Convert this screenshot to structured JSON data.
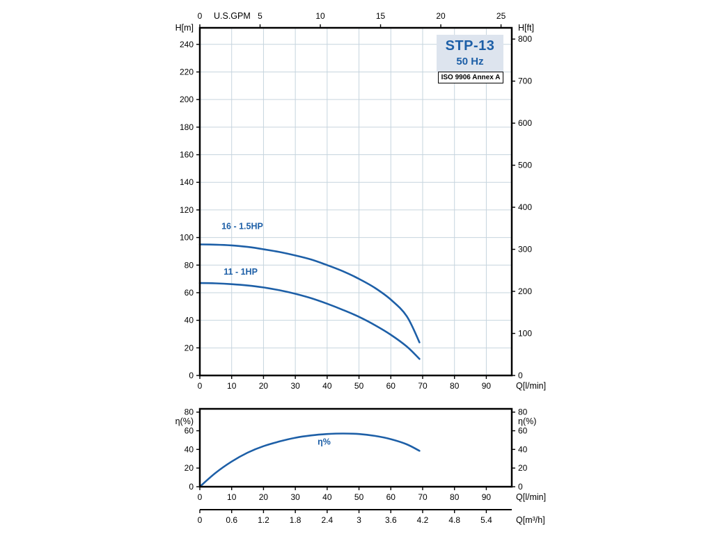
{
  "title_box": {
    "model": "STP-13",
    "frequency": "50 Hz",
    "standard": "ISO 9906 Annex A"
  },
  "colors": {
    "curve": "#1d5fa7",
    "grid": "#c6d4de",
    "axis": "#000000",
    "title_text": "#1d5fa7",
    "title_bg": "#dde4ee"
  },
  "chart_data": [
    {
      "id": "head_flow",
      "type": "line",
      "title": "STP-13 50 Hz head vs flow",
      "x_axis": {
        "label": "Q[l/min]",
        "min": 0,
        "max": 98,
        "ticks": [
          0,
          10,
          20,
          30,
          40,
          50,
          60,
          70,
          80,
          90
        ]
      },
      "x_top_axis": {
        "label": "U.S.GPM",
        "ticks": [
          0,
          5,
          10,
          15,
          20,
          25
        ],
        "lpm_per_gpm": 3.785
      },
      "y_axis": {
        "label": "H[m]",
        "min": 0,
        "max": 252,
        "ticks": [
          0,
          20,
          40,
          60,
          80,
          100,
          120,
          140,
          160,
          180,
          200,
          220,
          240
        ]
      },
      "y_right_axis": {
        "label": "H[ft]",
        "ticks": [
          0,
          100,
          200,
          300,
          400,
          500,
          600,
          700,
          800
        ],
        "ft_per_m": 3.2808
      },
      "grid": true,
      "legend_position": "none",
      "series": [
        {
          "name": "16 - 1.5HP",
          "label_pos": {
            "x": 6.8,
            "y": 106
          },
          "points": [
            [
              0,
              95
            ],
            [
              5,
              94.8
            ],
            [
              10,
              94.3
            ],
            [
              15,
              93.2
            ],
            [
              20,
              91.5
            ],
            [
              25,
              89.5
            ],
            [
              30,
              87
            ],
            [
              35,
              84
            ],
            [
              40,
              80
            ],
            [
              45,
              75.5
            ],
            [
              50,
              70
            ],
            [
              55,
              63.5
            ],
            [
              60,
              55
            ],
            [
              65,
              43
            ],
            [
              69,
              24
            ]
          ]
        },
        {
          "name": "11 - 1HP",
          "label_pos": {
            "x": 7.5,
            "y": 73
          },
          "points": [
            [
              0,
              67
            ],
            [
              5,
              66.8
            ],
            [
              10,
              66.2
            ],
            [
              15,
              65.2
            ],
            [
              20,
              63.8
            ],
            [
              25,
              61.8
            ],
            [
              30,
              59.2
            ],
            [
              35,
              56
            ],
            [
              40,
              52
            ],
            [
              45,
              47.5
            ],
            [
              50,
              42.5
            ],
            [
              55,
              36.5
            ],
            [
              60,
              29.5
            ],
            [
              65,
              21
            ],
            [
              69,
              12
            ]
          ]
        }
      ]
    },
    {
      "id": "efficiency",
      "type": "line",
      "title": "Efficiency vs flow",
      "x_axis": {
        "label": "Q[l/min]",
        "min": 0,
        "max": 98,
        "ticks": [
          0,
          10,
          20,
          30,
          40,
          50,
          60,
          70,
          80,
          90
        ]
      },
      "y_axis": {
        "label": "η(%)",
        "min": 0,
        "max": 83.5,
        "ticks": [
          0,
          20,
          40,
          60,
          80
        ]
      },
      "y_right_axis": {
        "label": "η(%)",
        "ticks": [
          0,
          20,
          40,
          60,
          80
        ]
      },
      "grid": false,
      "legend_position": "none",
      "series": [
        {
          "name": "η%",
          "label_pos": {
            "x": 37,
            "y": 45
          },
          "points": [
            [
              0,
              0
            ],
            [
              5,
              15
            ],
            [
              10,
              27
            ],
            [
              15,
              36.5
            ],
            [
              20,
              43.5
            ],
            [
              25,
              48.5
            ],
            [
              30,
              52.5
            ],
            [
              35,
              55
            ],
            [
              40,
              56.5
            ],
            [
              45,
              57
            ],
            [
              50,
              56.5
            ],
            [
              55,
              54.5
            ],
            [
              60,
              51
            ],
            [
              65,
              45.5
            ],
            [
              69,
              38.5
            ]
          ]
        }
      ]
    }
  ],
  "m3h_axis": {
    "label": "Q[m³/h]",
    "positions_lpm": [
      0,
      10,
      20,
      30,
      40,
      50,
      60,
      70,
      80,
      90
    ],
    "labels": [
      "0",
      "0.6",
      "1.2",
      "1.8",
      "2.4",
      "3",
      "3.6",
      "4.2",
      "4.8",
      "5.4"
    ]
  }
}
